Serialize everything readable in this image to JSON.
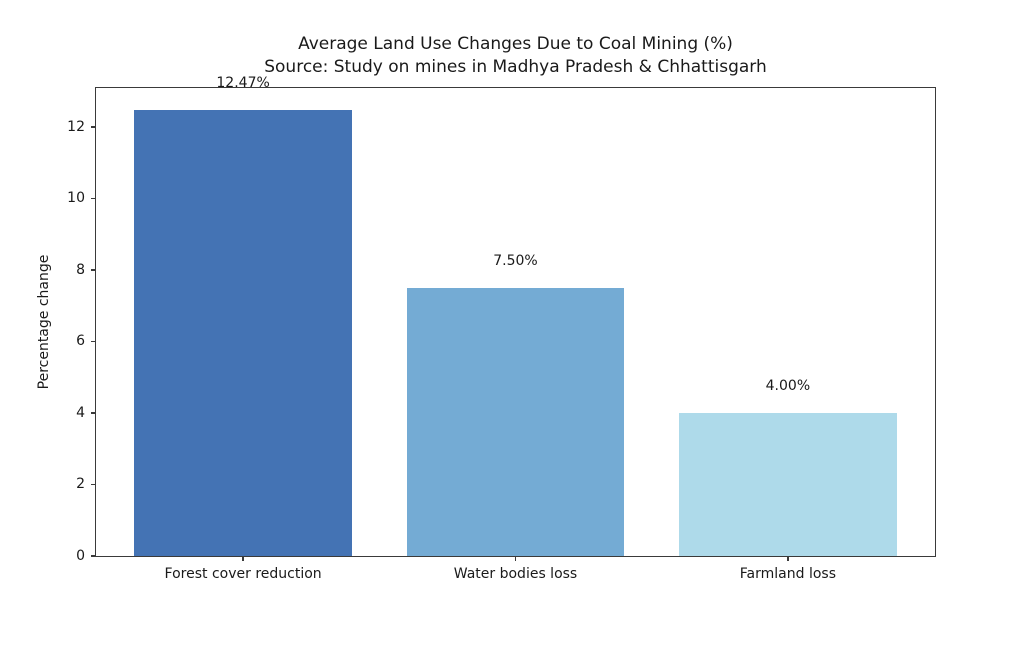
{
  "chart_data": {
    "type": "bar",
    "title": "Average Land Use Changes Due to Coal Mining (%)",
    "subtitle": "Source: Study on mines in Madhya Pradesh & Chhattisgarh",
    "ylabel": "Percentage change",
    "xlabel": "",
    "categories": [
      "Forest cover reduction",
      "Water bodies loss",
      "Farmland loss"
    ],
    "values": [
      12.47,
      7.5,
      4.0
    ],
    "value_labels": [
      "12.47%",
      "7.50%",
      "4.00%"
    ],
    "bar_colors": [
      "#4473B4",
      "#74ABD4",
      "#AEDAEA"
    ],
    "yticks": [
      0,
      2,
      4,
      6,
      8,
      10,
      12
    ],
    "ylim": [
      0,
      13.09
    ],
    "xlim_units": [
      -0.54,
      2.54
    ],
    "bar_width_units": 0.8,
    "value_label_offset_units": 0.5,
    "grid": false,
    "legend_position": "none"
  },
  "figure": {
    "background": "#ffffff",
    "spine_color": "#3a3a3a",
    "text_color": "#1a1a1a"
  }
}
